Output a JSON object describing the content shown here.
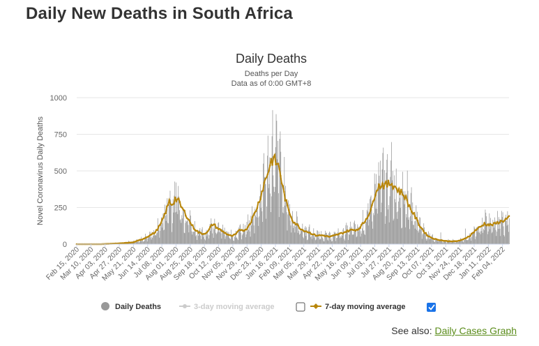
{
  "page": {
    "title": "Daily New Deaths in South Africa",
    "see_also_label": "See also:",
    "see_also_link": "Daily Cases Graph"
  },
  "legend": {
    "daily_deaths": "Daily Deaths",
    "three_day": "3-day moving average",
    "seven_day": "7-day moving average",
    "three_day_checked": false,
    "seven_day_checked": true
  },
  "colors": {
    "bars": "#999999",
    "seven_day_line": "#b8860b",
    "three_day_line": "#cccccc",
    "link": "#5a8c1a",
    "checkbox": "#1a73e8"
  },
  "chart_data": {
    "type": "bar",
    "title": "Daily Deaths",
    "subtitle": "Deaths per Day",
    "subtitle2": "Data as of 0:00 GMT+8",
    "ylabel": "Novel Coronavirus Daily Deaths",
    "ylim": [
      0,
      1000
    ],
    "yticks": [
      0,
      250,
      500,
      750,
      1000
    ],
    "x_start": "2020-02-15",
    "x_end": "2022-02-22",
    "xtick_labels": [
      "Feb 15, 2020",
      "Mar 10, 2020",
      "Apr 03, 2020",
      "Apr 27, 2020",
      "May 21, 2020",
      "Jun 14, 2020",
      "Jul 08, 2020",
      "Aug 01, 2020",
      "Aug 25, 2020",
      "Sep 18, 2020",
      "Oct 12, 2020",
      "Nov 05, 2020",
      "Nov 29, 2020",
      "Dec 23, 2020",
      "Jan 16, 2021",
      "Feb 09, 2021",
      "Mar 05, 2021",
      "Mar 29, 2021",
      "Apr 22, 2021",
      "May 16, 2021",
      "Jun 09, 2021",
      "Jul 03, 2021",
      "Jul 27, 2021",
      "Aug 20, 2021",
      "Sep 13, 2021",
      "Oct 07, 2021",
      "Oct 31, 2021",
      "Nov 24, 2021",
      "Dec 18, 2021",
      "Jan 11, 2022",
      "Feb 04, 2022"
    ],
    "series": [
      {
        "name": "7-day moving average",
        "points": [
          [
            "2020-02-15",
            0
          ],
          [
            "2020-03-27",
            0
          ],
          [
            "2020-04-03",
            1
          ],
          [
            "2020-04-27",
            5
          ],
          [
            "2020-05-21",
            12
          ],
          [
            "2020-06-07",
            35
          ],
          [
            "2020-06-14",
            50
          ],
          [
            "2020-06-28",
            80
          ],
          [
            "2020-07-08",
            140
          ],
          [
            "2020-07-15",
            210
          ],
          [
            "2020-07-22",
            290
          ],
          [
            "2020-07-27",
            270
          ],
          [
            "2020-08-01",
            310
          ],
          [
            "2020-08-06",
            300
          ],
          [
            "2020-08-12",
            250
          ],
          [
            "2020-08-20",
            200
          ],
          [
            "2020-08-25",
            160
          ],
          [
            "2020-09-02",
            110
          ],
          [
            "2020-09-10",
            80
          ],
          [
            "2020-09-18",
            70
          ],
          [
            "2020-09-26",
            85
          ],
          [
            "2020-10-01",
            120
          ],
          [
            "2020-10-05",
            140
          ],
          [
            "2020-10-12",
            110
          ],
          [
            "2020-10-20",
            90
          ],
          [
            "2020-10-28",
            70
          ],
          [
            "2020-11-05",
            55
          ],
          [
            "2020-11-12",
            65
          ],
          [
            "2020-11-20",
            100
          ],
          [
            "2020-11-29",
            95
          ],
          [
            "2020-12-05",
            130
          ],
          [
            "2020-12-14",
            200
          ],
          [
            "2020-12-23",
            300
          ],
          [
            "2020-12-30",
            400
          ],
          [
            "2021-01-07",
            500
          ],
          [
            "2021-01-12",
            570
          ],
          [
            "2021-01-16",
            580
          ],
          [
            "2021-01-20",
            560
          ],
          [
            "2021-01-26",
            520
          ],
          [
            "2021-02-01",
            380
          ],
          [
            "2021-02-09",
            250
          ],
          [
            "2021-02-18",
            160
          ],
          [
            "2021-03-05",
            100
          ],
          [
            "2021-03-15",
            85
          ],
          [
            "2021-03-29",
            60
          ],
          [
            "2021-04-10",
            60
          ],
          [
            "2021-04-22",
            50
          ],
          [
            "2021-05-05",
            65
          ],
          [
            "2021-05-16",
            80
          ],
          [
            "2021-05-26",
            95
          ],
          [
            "2021-06-09",
            100
          ],
          [
            "2021-06-20",
            150
          ],
          [
            "2021-07-03",
            250
          ],
          [
            "2021-07-10",
            380
          ],
          [
            "2021-07-20",
            410
          ],
          [
            "2021-07-27",
            400
          ],
          [
            "2021-08-05",
            420
          ],
          [
            "2021-08-12",
            390
          ],
          [
            "2021-08-20",
            360
          ],
          [
            "2021-08-28",
            330
          ],
          [
            "2021-09-06",
            250
          ],
          [
            "2021-09-13",
            200
          ],
          [
            "2021-09-22",
            130
          ],
          [
            "2021-10-01",
            80
          ],
          [
            "2021-10-07",
            55
          ],
          [
            "2021-10-18",
            35
          ],
          [
            "2021-10-31",
            25
          ],
          [
            "2021-11-10",
            20
          ],
          [
            "2021-11-24",
            20
          ],
          [
            "2021-12-05",
            30
          ],
          [
            "2021-12-18",
            60
          ],
          [
            "2021-12-28",
            100
          ],
          [
            "2022-01-05",
            120
          ],
          [
            "2022-01-11",
            140
          ],
          [
            "2022-01-20",
            130
          ],
          [
            "2022-01-27",
            135
          ],
          [
            "2022-02-04",
            150
          ],
          [
            "2022-02-12",
            160
          ],
          [
            "2022-02-22",
            180
          ]
        ]
      }
    ]
  }
}
